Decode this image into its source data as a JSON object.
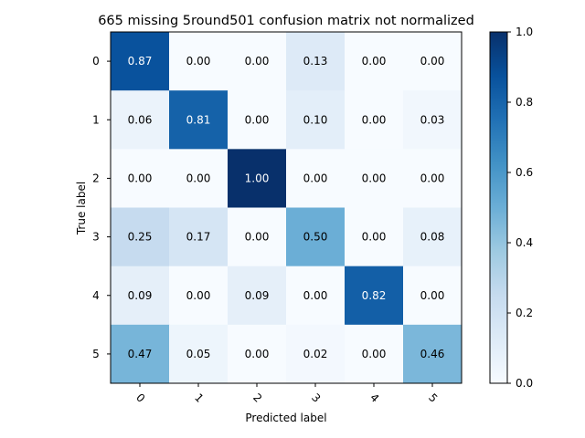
{
  "chart_data": {
    "type": "heatmap",
    "title": "665 missing 5round501 confusion matrix not normalized",
    "xlabel": "Predicted label",
    "ylabel": "True label",
    "x_categories": [
      "0",
      "1",
      "2",
      "3",
      "4",
      "5"
    ],
    "y_categories": [
      "0",
      "1",
      "2",
      "3",
      "4",
      "5"
    ],
    "values": [
      [
        0.87,
        0.0,
        0.0,
        0.13,
        0.0,
        0.0
      ],
      [
        0.06,
        0.81,
        0.0,
        0.1,
        0.0,
        0.03
      ],
      [
        0.0,
        0.0,
        1.0,
        0.0,
        0.0,
        0.0
      ],
      [
        0.25,
        0.17,
        0.0,
        0.5,
        0.0,
        0.08
      ],
      [
        0.09,
        0.0,
        0.09,
        0.0,
        0.82,
        0.0
      ],
      [
        0.47,
        0.05,
        0.0,
        0.02,
        0.0,
        0.46
      ]
    ],
    "value_labels": [
      [
        "0.87",
        "0.00",
        "0.00",
        "0.13",
        "0.00",
        "0.00"
      ],
      [
        "0.06",
        "0.81",
        "0.00",
        "0.10",
        "0.00",
        "0.03"
      ],
      [
        "0.00",
        "0.00",
        "1.00",
        "0.00",
        "0.00",
        "0.00"
      ],
      [
        "0.25",
        "0.17",
        "0.00",
        "0.50",
        "0.00",
        "0.08"
      ],
      [
        "0.09",
        "0.00",
        "0.09",
        "0.00",
        "0.82",
        "0.00"
      ],
      [
        "0.47",
        "0.05",
        "0.00",
        "0.02",
        "0.00",
        "0.46"
      ]
    ],
    "colormap": "Blues",
    "colorbar": {
      "range": [
        0.0,
        1.0
      ],
      "ticks": [
        "0.0",
        "0.2",
        "0.4",
        "0.6",
        "0.8",
        "1.0"
      ]
    },
    "x_tick_rotation": "45deg",
    "grid": false
  },
  "colors": {
    "cmap_low": "#f7fbff",
    "cmap_high": "#08306b",
    "text_dark": "#000000",
    "text_light": "#ffffff"
  }
}
